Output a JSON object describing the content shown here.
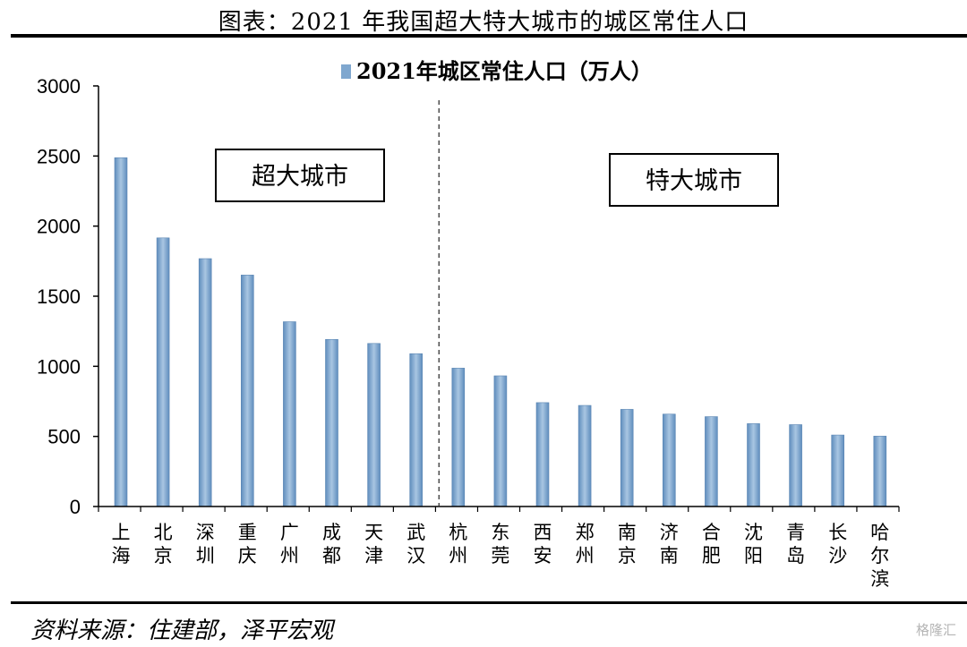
{
  "page_title": "图表：2021 年我国超大特大城市的城区常住人口",
  "source_note": "资料来源：住建部，泽平宏观",
  "watermark": "格隆汇",
  "colors": {
    "bar": "#7fa7cf",
    "bar_edge": "#5b86b3",
    "axis": "#000000",
    "divider": "#333333"
  },
  "chart_data": {
    "type": "bar",
    "legend": "2021年城区常住人口（万人）",
    "legend_position": "top-center",
    "categories": [
      "上海",
      "北京",
      "深圳",
      "重庆",
      "广州",
      "成都",
      "天津",
      "武汉",
      "杭州",
      "东莞",
      "西安",
      "郑州",
      "南京",
      "济南",
      "合肥",
      "沈阳",
      "青岛",
      "长沙",
      "哈尔滨"
    ],
    "series": [
      {
        "name": "2021年城区常住人口（万人）",
        "values": [
          2488,
          1916,
          1768,
          1651,
          1318,
          1192,
          1163,
          1090,
          987,
          932,
          741,
          721,
          693,
          659,
          641,
          591,
          584,
          510,
          502
        ]
      }
    ],
    "ylim": [
      0,
      3000
    ],
    "yticks": [
      0,
      500,
      1000,
      1500,
      2000,
      2500,
      3000
    ],
    "grid": false,
    "groups": [
      {
        "label": "超大城市",
        "count": 8
      },
      {
        "label": "特大城市",
        "count": 11
      }
    ]
  }
}
